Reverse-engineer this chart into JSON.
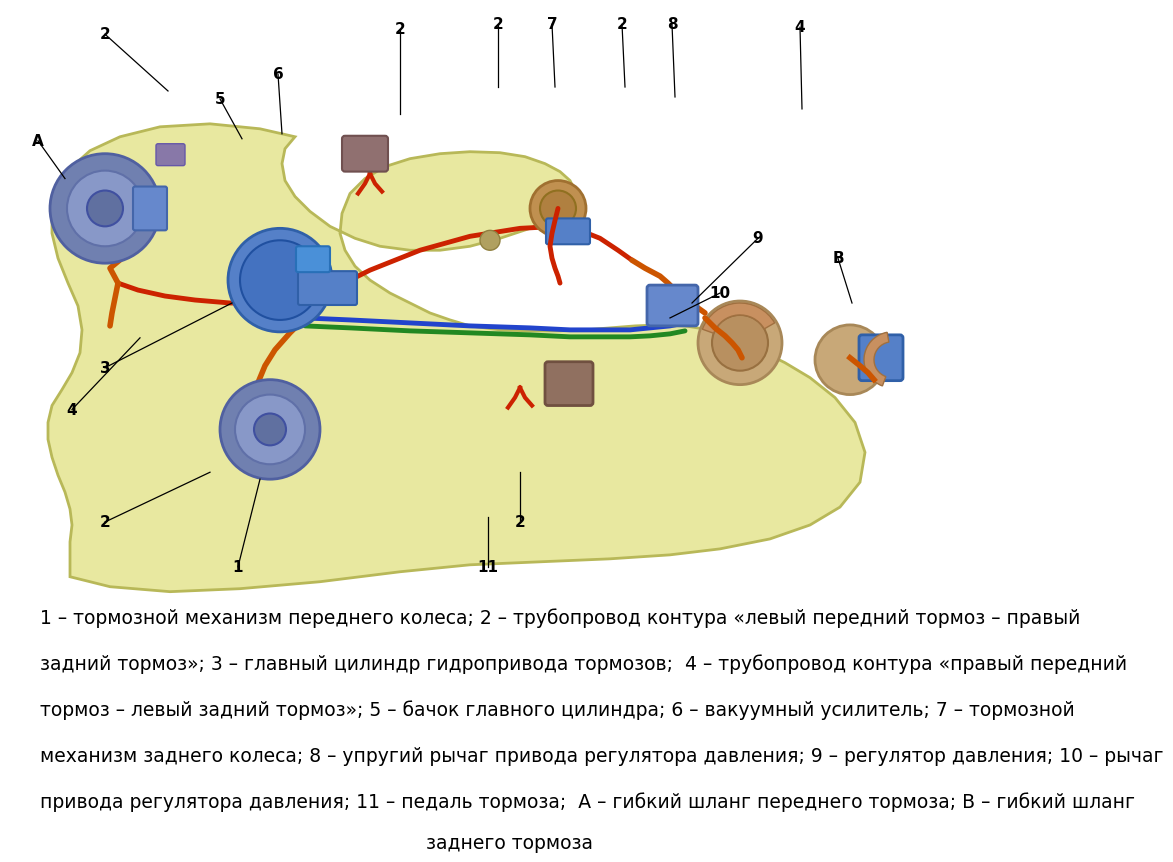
{
  "background_color": "#ffffff",
  "figure_width": 10.0,
  "figure_height": 8.39,
  "car_body_color": "#e8e8a0",
  "legend_text_line1": "1 – тормозной механизм переднего колеса; 2 – трубопровод контура «левый передний тормоз – правый",
  "legend_text_line2": "задний тормоз»; 3 – главный цилиндр гидропривода тормозов;  4 – трубопровод контура «правый передний",
  "legend_text_line3": "тормоз – левый задний тормоз»; 5 – бачок главного цилиндра; 6 – вакуумный усилитель; 7 – тормозной",
  "legend_text_line4": "механизм заднего колеса; 8 – упругий рычаг привода регулятора давления; 9 – регулятор давления; 10 – рычаг",
  "legend_text_line5": "привода регулятора давления; 11 – педаль тормоза;  A – гибкий шланг переднего тормоза; B – гибкий шланг",
  "legend_text_line6": "заднего тормоза",
  "legend_fontsize": 13.5
}
